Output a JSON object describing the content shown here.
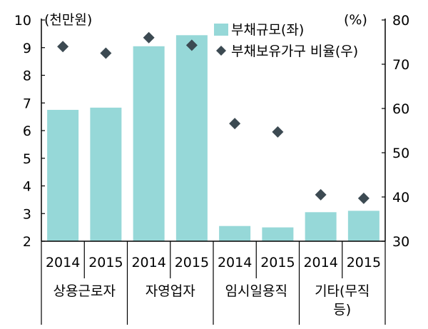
{
  "chart_data": {
    "type": "bar",
    "y_left_unit": "(천만원)",
    "y_right_unit": "(%)",
    "y_left_ticks": [
      "2",
      "3",
      "4",
      "5",
      "6",
      "7",
      "8",
      "9",
      "10"
    ],
    "y_right_ticks": [
      "30",
      "40",
      "50",
      "60",
      "70",
      "80"
    ],
    "ylim_left": [
      2,
      10
    ],
    "ylim_right": [
      30,
      80
    ],
    "categories": [
      "2014",
      "2015",
      "2014",
      "2015",
      "2014",
      "2015",
      "2014",
      "2015"
    ],
    "groups": [
      {
        "label": "상용근로자",
        "lines": [
          "상용근로자"
        ]
      },
      {
        "label": "자영업자",
        "lines": [
          "자영업자"
        ]
      },
      {
        "label": "임시일용직",
        "lines": [
          "임시일용직"
        ]
      },
      {
        "label": "기타(무직 등)",
        "lines": [
          "기타(무직",
          "등)"
        ]
      }
    ],
    "series": [
      {
        "name": "부채규모(좌)",
        "type": "bar",
        "axis": "left",
        "color": "#96d8d8",
        "values": [
          6.75,
          6.83,
          9.05,
          9.45,
          2.55,
          2.5,
          3.05,
          3.1
        ]
      },
      {
        "name": "부채보유가구 비율(우)",
        "type": "scatter",
        "axis": "right",
        "color": "#3c4a52",
        "values": [
          74,
          72.5,
          76,
          74.3,
          56.6,
          54.7,
          40.5,
          39.7
        ]
      }
    ],
    "legend_position": "top-right",
    "grid": false
  }
}
